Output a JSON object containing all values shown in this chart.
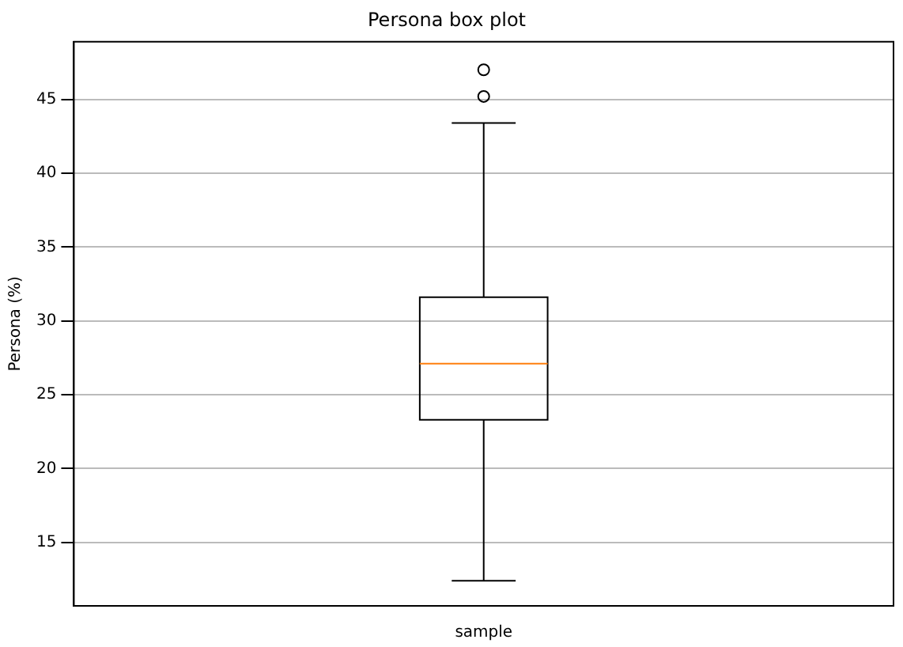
{
  "chart_data": {
    "type": "box",
    "title": "Persona box plot",
    "ylabel": "Persona (%)",
    "categories": [
      "sample"
    ],
    "boxes": [
      {
        "low": 12.4,
        "q1": 23.3,
        "median": 27.1,
        "q3": 31.6,
        "high": 43.4,
        "outliers": [
          45.2,
          47.0
        ]
      }
    ],
    "color": "#000000",
    "ylim": [
      10.7,
      48.9
    ],
    "yticks": [
      15,
      20,
      25,
      30,
      35,
      40,
      45
    ],
    "grid": "y"
  }
}
